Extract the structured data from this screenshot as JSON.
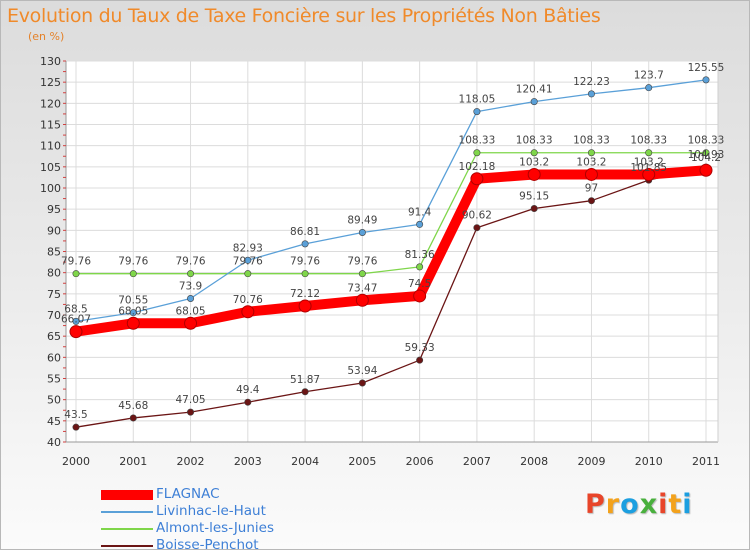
{
  "chart_title": "Evolution du Taux de Taxe Foncière sur les Propriétés Non Bâties",
  "unit_label": "(en %)",
  "logo": {
    "letters": [
      "P",
      "r",
      "o",
      "x",
      "i",
      "t",
      "i"
    ],
    "colors": [
      "#e8452a",
      "#f3a21c",
      "#1c9fe0",
      "#49b03d",
      "#e8452a",
      "#f3a21c",
      "#1c9fe0"
    ]
  },
  "chart_data": {
    "type": "line",
    "title": "Evolution du Taux de Taxe Foncière sur les Propriétés Non Bâties",
    "ylabel": "(en %)",
    "xlabel": "",
    "ylim": [
      40,
      130
    ],
    "y_ticks": [
      40,
      45,
      50,
      55,
      60,
      65,
      70,
      75,
      80,
      85,
      90,
      95,
      100,
      105,
      110,
      115,
      120,
      125,
      130
    ],
    "x": [
      "2000",
      "2001",
      "2002",
      "2003",
      "2004",
      "2005",
      "2006",
      "2007",
      "2008",
      "2009",
      "2010",
      "2011"
    ],
    "grid": true,
    "legend": "bottom-left",
    "series": [
      {
        "name": "Boisse-Penchot",
        "color": "#6b1515",
        "width": "thin",
        "values": [
          43.5,
          45.68,
          47.05,
          49.4,
          51.87,
          53.94,
          59.33,
          90.62,
          95.15,
          97,
          101.85,
          104.93
        ],
        "labels": [
          "43.5",
          "45.68",
          "47.05",
          "49.4",
          "51.87",
          "53.94",
          "59.33",
          "90.62",
          "95.15",
          "97",
          "101.85",
          "104.93"
        ]
      },
      {
        "name": "Almont-les-Junies",
        "color": "#7fd64a",
        "width": "thin",
        "values": [
          79.76,
          79.76,
          79.76,
          79.76,
          79.76,
          79.76,
          81.36,
          108.33,
          108.33,
          108.33,
          108.33,
          108.33
        ],
        "labels": [
          "79.76",
          "79.76",
          "79.76",
          "79.76",
          "79.76",
          "79.76",
          "81.36",
          "108.33",
          "108.33",
          "108.33",
          "108.33",
          "108.33"
        ]
      },
      {
        "name": "Livinhac-le-Haut",
        "color": "#5aa0d8",
        "width": "thin",
        "values": [
          68.5,
          70.55,
          73.9,
          82.93,
          86.81,
          89.49,
          91.4,
          118.05,
          120.41,
          122.23,
          123.7,
          125.55
        ],
        "labels": [
          "68.5",
          "70.55",
          "73.9",
          "82.93",
          "86.81",
          "89.49",
          "91.4",
          "118.05",
          "120.41",
          "122.23",
          "123.7",
          "125.55"
        ]
      },
      {
        "name": "FLAGNAC",
        "color": "#ff0000",
        "width": "thick",
        "values": [
          66.07,
          68.05,
          68.05,
          70.76,
          72.12,
          73.47,
          74.5,
          102.18,
          103.2,
          103.2,
          103.2,
          104.2
        ],
        "labels": [
          "66.07",
          "68.05",
          "68.05",
          "70.76",
          "72.12",
          "73.47",
          "74.5",
          "102.18",
          "103.2",
          "103.2",
          "103.2",
          "104.2"
        ]
      }
    ],
    "legend_entries": [
      "FLAGNAC",
      "Livinhac-le-Haut",
      "Almont-les-Junies",
      "Boisse-Penchot"
    ]
  }
}
